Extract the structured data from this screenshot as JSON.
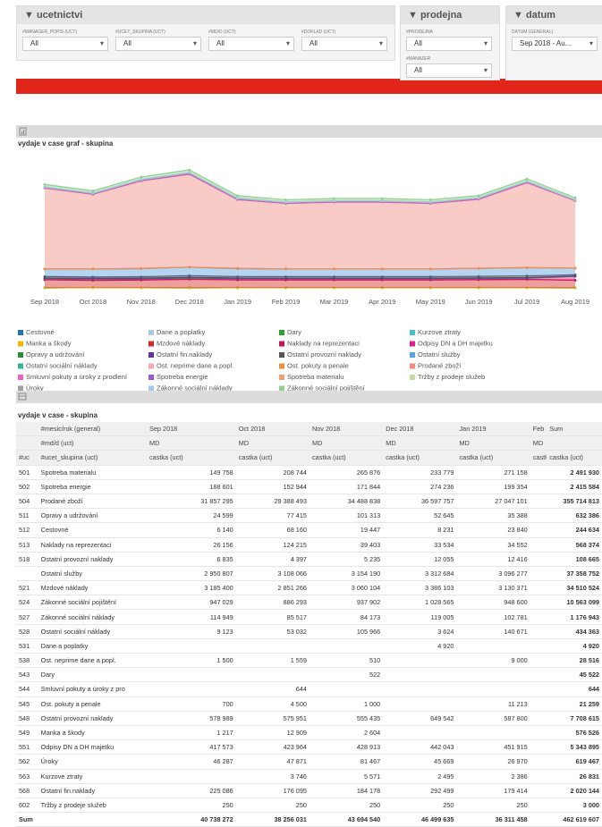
{
  "filters": [
    {
      "title": "ucetnictvi",
      "fields": [
        {
          "label": "#MANAGER_POPIS (UCT)",
          "value": "All"
        },
        {
          "label": "#UCET_SKUPINA (UCT)",
          "value": "All"
        },
        {
          "label": "#MD/D (UCT)",
          "value": "All"
        },
        {
          "label": "#DOKLAD (UCT)",
          "value": "All"
        }
      ]
    },
    {
      "title": "prodejna",
      "fields": [
        {
          "label": "#PRODEJNA",
          "value": "All"
        },
        {
          "label": "#MANAZER",
          "value": "All"
        }
      ]
    },
    {
      "title": "datum",
      "fields": [
        {
          "label": "DATUM (GENERAL)",
          "value": "Sep 2018 - Au..."
        }
      ]
    }
  ],
  "chart_data": {
    "type": "area",
    "title": "vydaje v case graf - skupina",
    "categories": [
      "Sep 2018",
      "Oct 2018",
      "Nov 2018",
      "Dec 2018",
      "Jan 2019",
      "Feb 2019",
      "Mar 2019",
      "Apr 2019",
      "May 2019",
      "Jun 2019",
      "Jul 2019",
      "Aug 2019"
    ],
    "ylim": [
      0,
      50
    ],
    "series": [
      {
        "name": "Cestovné",
        "color": "#1f77b4",
        "values": [
          0.01,
          0.07,
          0.02,
          0.01,
          0.02,
          0.02,
          0.02,
          0.02,
          0.02,
          0.02,
          0.02,
          0.01
        ]
      },
      {
        "name": "Dane a poplatky",
        "color": "#aec7e8",
        "values": [
          0,
          0,
          0,
          0,
          0,
          0,
          0,
          0,
          0,
          0,
          0,
          0
        ]
      },
      {
        "name": "Dary",
        "color": "#2ca02c",
        "values": [
          0,
          0,
          0,
          0,
          0,
          0,
          0,
          0,
          0,
          0,
          0,
          0
        ]
      },
      {
        "name": "Kurzove ztraty",
        "color": "#3ec1c9",
        "values": [
          0,
          0,
          0,
          0,
          0,
          0,
          0,
          0,
          0,
          0,
          0,
          0
        ]
      },
      {
        "name": "Manka a škody",
        "color": "#f5b800",
        "values": [
          0,
          0.01,
          0,
          0,
          0,
          0,
          0,
          0,
          0,
          0,
          0,
          0
        ]
      },
      {
        "name": "Mzdové náklady",
        "color": "#d62728",
        "values": [
          3.19,
          2.85,
          3.06,
          3.39,
          3.13,
          3.1,
          3.1,
          3.1,
          3.1,
          3.2,
          3.3,
          3.0
        ]
      },
      {
        "name": "Naklady na reprezentaci",
        "color": "#c2185b",
        "values": [
          0.03,
          0.12,
          0.04,
          0.03,
          0.03,
          0.05,
          0.05,
          0.05,
          0.05,
          0.05,
          0.05,
          0.03
        ]
      },
      {
        "name": "Odpisy DN a DH majetku",
        "color": "#e0208a",
        "values": [
          0.42,
          0.42,
          0.43,
          0.44,
          0.45,
          0.45,
          0.45,
          0.45,
          0.45,
          0.45,
          0.45,
          1.5
        ]
      },
      {
        "name": "Opravy a udržování",
        "color": "#2e8b3e",
        "values": [
          0.02,
          0.08,
          0.1,
          0.05,
          0.04,
          0.05,
          0.05,
          0.05,
          0.05,
          0.05,
          0.05,
          0.03
        ]
      },
      {
        "name": "Ostatní fin.naklady",
        "color": "#5b3b9c",
        "values": [
          0.23,
          0.18,
          0.18,
          0.29,
          0.18,
          0.17,
          0.17,
          0.17,
          0.17,
          0.17,
          0.17,
          0.12
        ]
      },
      {
        "name": "Ostatní provozní naklady",
        "color": "#555555",
        "values": [
          0.58,
          0.58,
          0.56,
          0.65,
          0.59,
          0.6,
          0.6,
          0.6,
          0.6,
          0.65,
          0.7,
          0.5
        ]
      },
      {
        "name": "Ostatní služby",
        "color": "#5aa0e0",
        "values": [
          2.95,
          3.11,
          3.15,
          3.31,
          3.1,
          3.0,
          3.0,
          3.0,
          3.0,
          3.1,
          3.2,
          2.6
        ]
      },
      {
        "name": "Ostatní sociální náklady",
        "color": "#3bb39a",
        "values": [
          0.01,
          0.05,
          0.11,
          0,
          0.14,
          0.02,
          0.02,
          0.02,
          0.02,
          0.02,
          0.02,
          0.01
        ]
      },
      {
        "name": "Ost. neprime dane a popl.",
        "color": "#f7a8b0",
        "values": [
          0,
          0,
          0,
          0,
          0.01,
          0,
          0,
          0,
          0,
          0,
          0,
          0
        ]
      },
      {
        "name": "Ost. pokuty a penale",
        "color": "#f08a3c",
        "values": [
          0,
          0,
          0,
          0,
          0.01,
          0,
          0,
          0,
          0,
          0,
          0,
          0
        ]
      },
      {
        "name": "Prodané zboží",
        "color": "#f28b82",
        "values": [
          31.86,
          29.39,
          34.49,
          36.6,
          27.05,
          25.8,
          26.3,
          26.3,
          25.8,
          27.2,
          33.5,
          26.5
        ]
      },
      {
        "name": "Smluvní pokuty a úroky z prodlení",
        "color": "#f060c0",
        "values": [
          0,
          0,
          0,
          0,
          0,
          0,
          0,
          0,
          0,
          0,
          0,
          0
        ]
      },
      {
        "name": "Spotreba energie",
        "color": "#9b59d0",
        "values": [
          0.19,
          0.15,
          0.17,
          0.27,
          0.2,
          0.2,
          0.2,
          0.2,
          0.2,
          0.2,
          0.2,
          0.15
        ]
      },
      {
        "name": "Spotreba materialu",
        "color": "#f0a070",
        "values": [
          0.15,
          0.21,
          0.27,
          0.23,
          0.27,
          0.2,
          0.2,
          0.2,
          0.2,
          0.2,
          0.2,
          0.15
        ]
      },
      {
        "name": "Tržby z prodeje služeb",
        "color": "#c8d6a0",
        "values": [
          0,
          0,
          0,
          0,
          0,
          0,
          0,
          0,
          0,
          0,
          0,
          0
        ]
      },
      {
        "name": "Úroky",
        "color": "#a0a0a0",
        "values": [
          0.05,
          0.05,
          0.08,
          0.05,
          0.03,
          0.05,
          0.05,
          0.05,
          0.05,
          0.05,
          0.05,
          0.04
        ]
      },
      {
        "name": "Zákonné sociální náklady",
        "color": "#a8c8f0",
        "values": [
          0.11,
          0.09,
          0.08,
          0.12,
          0.1,
          0.1,
          0.1,
          0.1,
          0.1,
          0.1,
          0.1,
          0.08
        ]
      },
      {
        "name": "Zákonné sociální pojištění",
        "color": "#8fd08f",
        "values": [
          0.95,
          0.89,
          0.94,
          1.03,
          0.95,
          0.9,
          0.9,
          0.9,
          0.9,
          0.9,
          0.95,
          0.8
        ]
      }
    ]
  },
  "table": {
    "title": "vydaje v case - skupina",
    "header": [
      [
        null,
        "#mesic/rok (general)",
        "Sep 2018",
        "Oct 2018",
        "Nov 2018",
        "Dec 2018",
        "Jan 2019",
        "Feb 2",
        "Sum"
      ],
      [
        null,
        "#md/d (uct)",
        "MD",
        "MD",
        "MD",
        "MD",
        "MD",
        "MD",
        null
      ],
      [
        "#uc",
        "#ucet_skupina (uct)",
        "castka (uct)",
        "castka (uct)",
        "castka (uct)",
        "castka (uct)",
        "castka (uct)",
        "castk",
        "castka (uct)"
      ]
    ],
    "rows": [
      [
        "501",
        "Spotreba materialu",
        "149 758",
        "208 744",
        "265 876",
        "233 779",
        "271 158",
        null,
        "2 491 930"
      ],
      [
        "502",
        "Spotreba energie",
        "188 601",
        "152 944",
        "171 844",
        "274 236",
        "199 354",
        null,
        "2 415 584"
      ],
      [
        "504",
        "Prodané zboží",
        "31 857 295",
        "29 388 493",
        "34 488 838",
        "36 597 757",
        "27 047 101",
        null,
        "355 714 813"
      ],
      [
        "511",
        "Opravy a udržování",
        "24 599",
        "77 415",
        "101 313",
        "52 645",
        "35 388",
        null,
        "632 386"
      ],
      [
        "512",
        "Cestovné",
        "6 140",
        "68 160",
        "19 447",
        "8 231",
        "23 840",
        null,
        "244 634"
      ],
      [
        "513",
        "Naklady na reprezentaci",
        "26 156",
        "124 215",
        "39 403",
        "33 534",
        "34 552",
        null,
        "568 374"
      ],
      [
        "518",
        "Ostatní provozní naklady",
        "6 835",
        "4 397",
        "5 235",
        "12 055",
        "12 416",
        null,
        "108 665"
      ],
      [
        null,
        "Ostatní služby",
        "2 950 807",
        "3 108 066",
        "3 154 190",
        "3 312 684",
        "3 096 277",
        null,
        "37 358 752"
      ],
      [
        "521",
        "Mzdové náklady",
        "3 185 400",
        "2 851 266",
        "3 060 104",
        "3 386 103",
        "3 130 371",
        null,
        "34 510 524"
      ],
      [
        "524",
        "Zákonné sociální pojištění",
        "947 029",
        "886 293",
        "937 902",
        "1 028 565",
        "948 600",
        null,
        "10 563 099"
      ],
      [
        "527",
        "Zákonné sociální náklady",
        "114 949",
        "85 517",
        "84 173",
        "119 005",
        "102 781",
        null,
        "1 176 943"
      ],
      [
        "528",
        "Ostatní sociální náklady",
        "9 123",
        "53 032",
        "105 966",
        "3 624",
        "140 671",
        null,
        "434 363"
      ],
      [
        "531",
        "Dane a poplatky",
        null,
        null,
        null,
        "4 920",
        null,
        null,
        "4 920"
      ],
      [
        "538",
        "Ost. neprime dane a popl.",
        "1 500",
        "1 559",
        "510",
        null,
        "9 000",
        null,
        "28 516"
      ],
      [
        "543",
        "Dary",
        null,
        null,
        "522",
        null,
        null,
        null,
        "45 522"
      ],
      [
        "544",
        "Smluvní pokuty a úroky z pro",
        null,
        "644",
        null,
        null,
        null,
        null,
        "644"
      ],
      [
        "545",
        "Ost. pokuty a penale",
        "700",
        "4 500",
        "1 000",
        null,
        "11 213",
        null,
        "21 259"
      ],
      [
        "548",
        "Ostatní provozní naklady",
        "578 989",
        "575 951",
        "555 435",
        "649 542",
        "587 800",
        null,
        "7 708 615"
      ],
      [
        "549",
        "Manka a škody",
        "1 217",
        "12 909",
        "2 604",
        null,
        null,
        null,
        "576 526"
      ],
      [
        "551",
        "Odpisy DN a DH majetku",
        "417 573",
        "423 964",
        "428 913",
        "442 043",
        "451 915",
        null,
        "5 343 895"
      ],
      [
        "562",
        "Úroky",
        "46 287",
        "47 871",
        "81 467",
        "45 669",
        "26 970",
        null,
        "619 467"
      ],
      [
        "563",
        "Kurzove ztraty",
        null,
        "3 746",
        "5 571",
        "2 495",
        "2 386",
        null,
        "26 831"
      ],
      [
        "568",
        "Ostatní fin.naklady",
        "225 086",
        "176 095",
        "184 178",
        "292 499",
        "179 414",
        null,
        "2 020 144"
      ],
      [
        "602",
        "Tržby z prodeje služeb",
        "250",
        "250",
        "250",
        "250",
        "250",
        null,
        "3 000"
      ],
      [
        "Sum",
        null,
        "40 738 272",
        "38 256 031",
        "43 694 540",
        "46 499 635",
        "36 311 458",
        null,
        "462 619 607"
      ]
    ]
  }
}
